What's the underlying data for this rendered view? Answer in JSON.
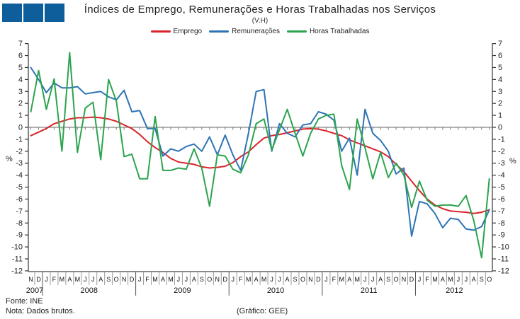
{
  "header": {
    "title": "Índices de Emprego, Remunerações e Horas Trabalhadas nos Serviços",
    "subtitle": "(V.H)"
  },
  "footer": {
    "source": "Fonte: INE",
    "note": "Nota: Dados brutos.",
    "credit": "(Gráfico: GEE)"
  },
  "logo": {
    "square_color": "#0f5e9c",
    "square_count": 3
  },
  "chart_data": {
    "type": "line",
    "title": "Índices de Emprego, Remunerações e Horas Trabalhadas nos Serviços",
    "subtitle": "(V.H)",
    "ylabel_left": "%",
    "ylabel_right": "%",
    "ylim": [
      -12,
      7
    ],
    "ytick_step": 1,
    "grid": "zero-line-only",
    "legend_position": "top-center",
    "axis_color": "#333333",
    "zero_line_color": "#999999",
    "x_months": [
      "N",
      "D",
      "J",
      "F",
      "M",
      "A",
      "M",
      "J",
      "J",
      "A",
      "S",
      "O",
      "N",
      "D",
      "J",
      "F",
      "M",
      "A",
      "M",
      "J",
      "J",
      "A",
      "S",
      "O",
      "N",
      "D",
      "J",
      "F",
      "M",
      "A",
      "M",
      "J",
      "J",
      "A",
      "S",
      "O",
      "N",
      "D",
      "J",
      "F",
      "M",
      "A",
      "M",
      "J",
      "J",
      "A",
      "S",
      "O",
      "N",
      "D",
      "J",
      "F",
      "M",
      "A",
      "M",
      "J",
      "J",
      "A",
      "S",
      "O"
    ],
    "x_years": [
      {
        "label": "2007",
        "start": 0,
        "count": 2
      },
      {
        "label": "2008",
        "start": 2,
        "count": 12
      },
      {
        "label": "2009",
        "start": 14,
        "count": 12
      },
      {
        "label": "2010",
        "start": 26,
        "count": 12
      },
      {
        "label": "2011",
        "start": 38,
        "count": 12
      },
      {
        "label": "2012",
        "start": 50,
        "count": 10
      }
    ],
    "series": [
      {
        "name": "Emprego",
        "color": "#d9242b",
        "values": [
          -0.7,
          -0.4,
          -0.1,
          0.3,
          0.5,
          0.7,
          0.8,
          0.8,
          0.85,
          0.8,
          0.7,
          0.5,
          0.2,
          -0.1,
          -0.6,
          -1.2,
          -1.7,
          -2.1,
          -2.6,
          -2.9,
          -3.0,
          -3.1,
          -3.3,
          -3.4,
          -3.35,
          -3.25,
          -2.95,
          -2.45,
          -2.05,
          -1.45,
          -0.9,
          -0.7,
          -0.6,
          -0.45,
          -0.3,
          -0.15,
          -0.1,
          -0.15,
          -0.3,
          -0.5,
          -0.7,
          -1.05,
          -1.3,
          -1.55,
          -1.8,
          -2.05,
          -2.45,
          -3.1,
          -3.7,
          -4.5,
          -5.3,
          -6.0,
          -6.5,
          -6.8,
          -7.0,
          -7.05,
          -7.1,
          -7.2,
          -7.1,
          -6.9
        ]
      },
      {
        "name": "Remunerações",
        "color": "#2e74b5",
        "values": [
          5.0,
          4.0,
          2.9,
          3.7,
          3.3,
          3.3,
          3.4,
          2.8,
          2.9,
          3.0,
          2.55,
          2.3,
          3.1,
          1.3,
          1.4,
          -0.1,
          -0.1,
          -2.4,
          -1.8,
          -2.0,
          -1.6,
          -1.4,
          -2.0,
          -0.8,
          -2.3,
          -0.65,
          -2.3,
          -3.6,
          -0.5,
          3.0,
          3.15,
          -2.0,
          0.3,
          -0.5,
          -0.8,
          0.2,
          0.3,
          1.3,
          1.1,
          0.6,
          -2.0,
          -0.9,
          -4.0,
          1.5,
          -0.5,
          -1.1,
          -2.0,
          -3.9,
          -3.4,
          -9.1,
          -6.2,
          -6.4,
          -7.2,
          -8.4,
          -7.6,
          -7.7,
          -8.5,
          -8.6,
          -8.3,
          -6.9
        ]
      },
      {
        "name": "Horas Trabalhadas",
        "color": "#2ba44e",
        "values": [
          1.3,
          4.75,
          1.5,
          4.05,
          -2.0,
          6.25,
          -2.1,
          1.6,
          2.1,
          -2.7,
          4.0,
          2.2,
          -2.45,
          -2.25,
          -4.3,
          -4.3,
          0.9,
          -3.6,
          -3.6,
          -3.4,
          -3.5,
          -1.8,
          -3.4,
          -6.6,
          -2.3,
          -2.4,
          -3.5,
          -3.8,
          -2.3,
          0.3,
          0.7,
          -1.9,
          -0.2,
          1.5,
          -0.5,
          -2.4,
          -0.5,
          0.7,
          1.0,
          1.1,
          -3.2,
          -5.2,
          0.7,
          -1.7,
          -4.3,
          -2.1,
          -4.2,
          -3.0,
          -4.0,
          -6.7,
          -4.5,
          -6.1,
          -6.6,
          -6.5,
          -6.5,
          -6.6,
          -5.7,
          -7.8,
          -10.9,
          -4.3
        ]
      }
    ]
  }
}
